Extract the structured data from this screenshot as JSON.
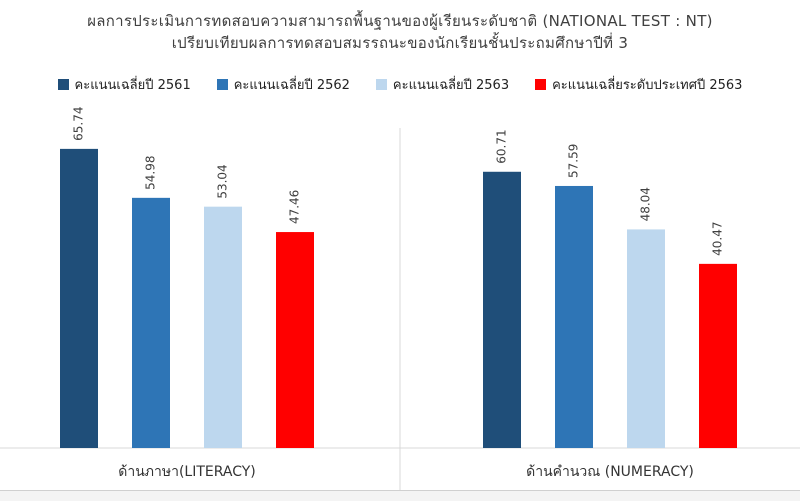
{
  "chart_data": {
    "type": "bar",
    "title": "ผลการประเมินการทดสอบความสามารถพื้นฐานของผู้เรียนระดับชาติ (NATIONAL TEST : NT)",
    "subtitle": "เปรียบเทียบผลการทดสอบสมรรถนะของนักเรียนชั้นประถมศึกษาปีที่ 3",
    "categories": [
      "ด้านภาษา(LITERACY)",
      "ด้านคำนวณ (NUMERACY)"
    ],
    "series": [
      {
        "name": "คะแนนเฉลี่ยปี 2561",
        "color": "#1f4e79",
        "values": [
          65.74,
          60.71
        ]
      },
      {
        "name": "คะแนนเฉลี่ยปี 2562",
        "color": "#2e75b6",
        "values": [
          54.98,
          57.59
        ]
      },
      {
        "name": "คะแนนเฉลี่ยปี 2563",
        "color": "#bdd7ee",
        "values": [
          53.04,
          48.04
        ]
      },
      {
        "name": "คะแนนเฉลี่ยระดับประเทศปี 2563",
        "color": "#ff0000",
        "values": [
          47.46,
          40.47
        ]
      }
    ],
    "data_labels": [
      [
        "65.74",
        "54.98",
        "53.04",
        "47.46"
      ],
      [
        "60.71",
        "57.59",
        "48.04",
        "40.47"
      ]
    ],
    "ylim": [
      0,
      75
    ],
    "grid": false,
    "legend_position": "top"
  }
}
